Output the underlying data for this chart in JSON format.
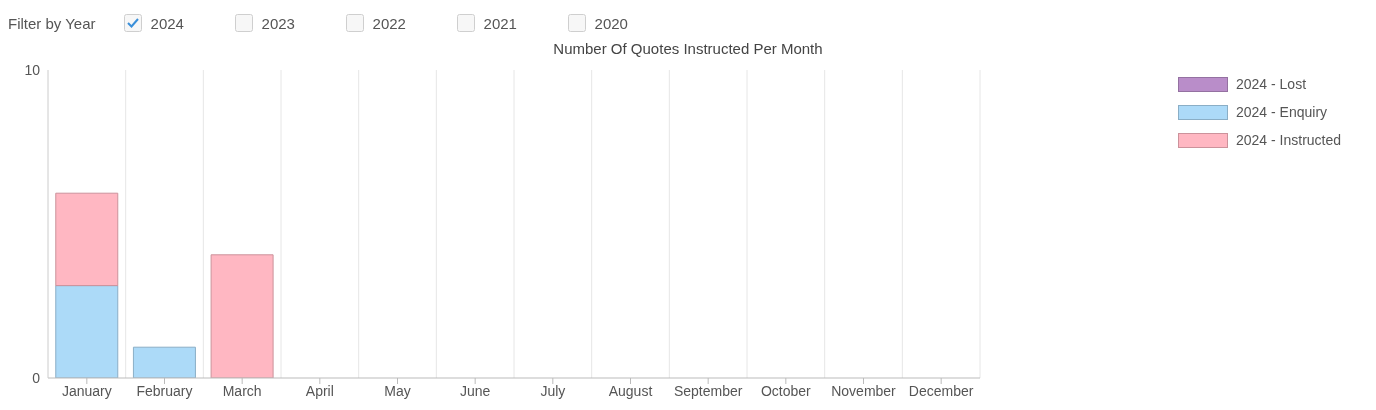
{
  "chart_data": {
    "type": "bar",
    "title": "Number Of Quotes Instructed Per Month",
    "categories": [
      "January",
      "February",
      "March",
      "April",
      "May",
      "June",
      "July",
      "August",
      "September",
      "October",
      "November",
      "December"
    ],
    "series": [
      {
        "name": "2024 - Lost",
        "color": "#b98dc9",
        "values": [
          0,
          0,
          0,
          0,
          0,
          0,
          0,
          0,
          0,
          0,
          0,
          0
        ]
      },
      {
        "name": "2024 - Enquiry",
        "color": "#acdaf8",
        "values": [
          3,
          1,
          0,
          0,
          0,
          0,
          0,
          0,
          0,
          0,
          0,
          0
        ]
      },
      {
        "name": "2024 - Instructed",
        "color": "#ffb7c2",
        "values": [
          3,
          0,
          4,
          0,
          0,
          0,
          0,
          0,
          0,
          0,
          0,
          0
        ]
      }
    ],
    "stacked": true,
    "ylim": [
      0,
      10
    ],
    "yticks": [
      0,
      10
    ],
    "grid": "x",
    "legend": "top right",
    "annotations": [
      "Filter by Year",
      "2024",
      "2023",
      "2022",
      "2021",
      "2020"
    ]
  }
}
